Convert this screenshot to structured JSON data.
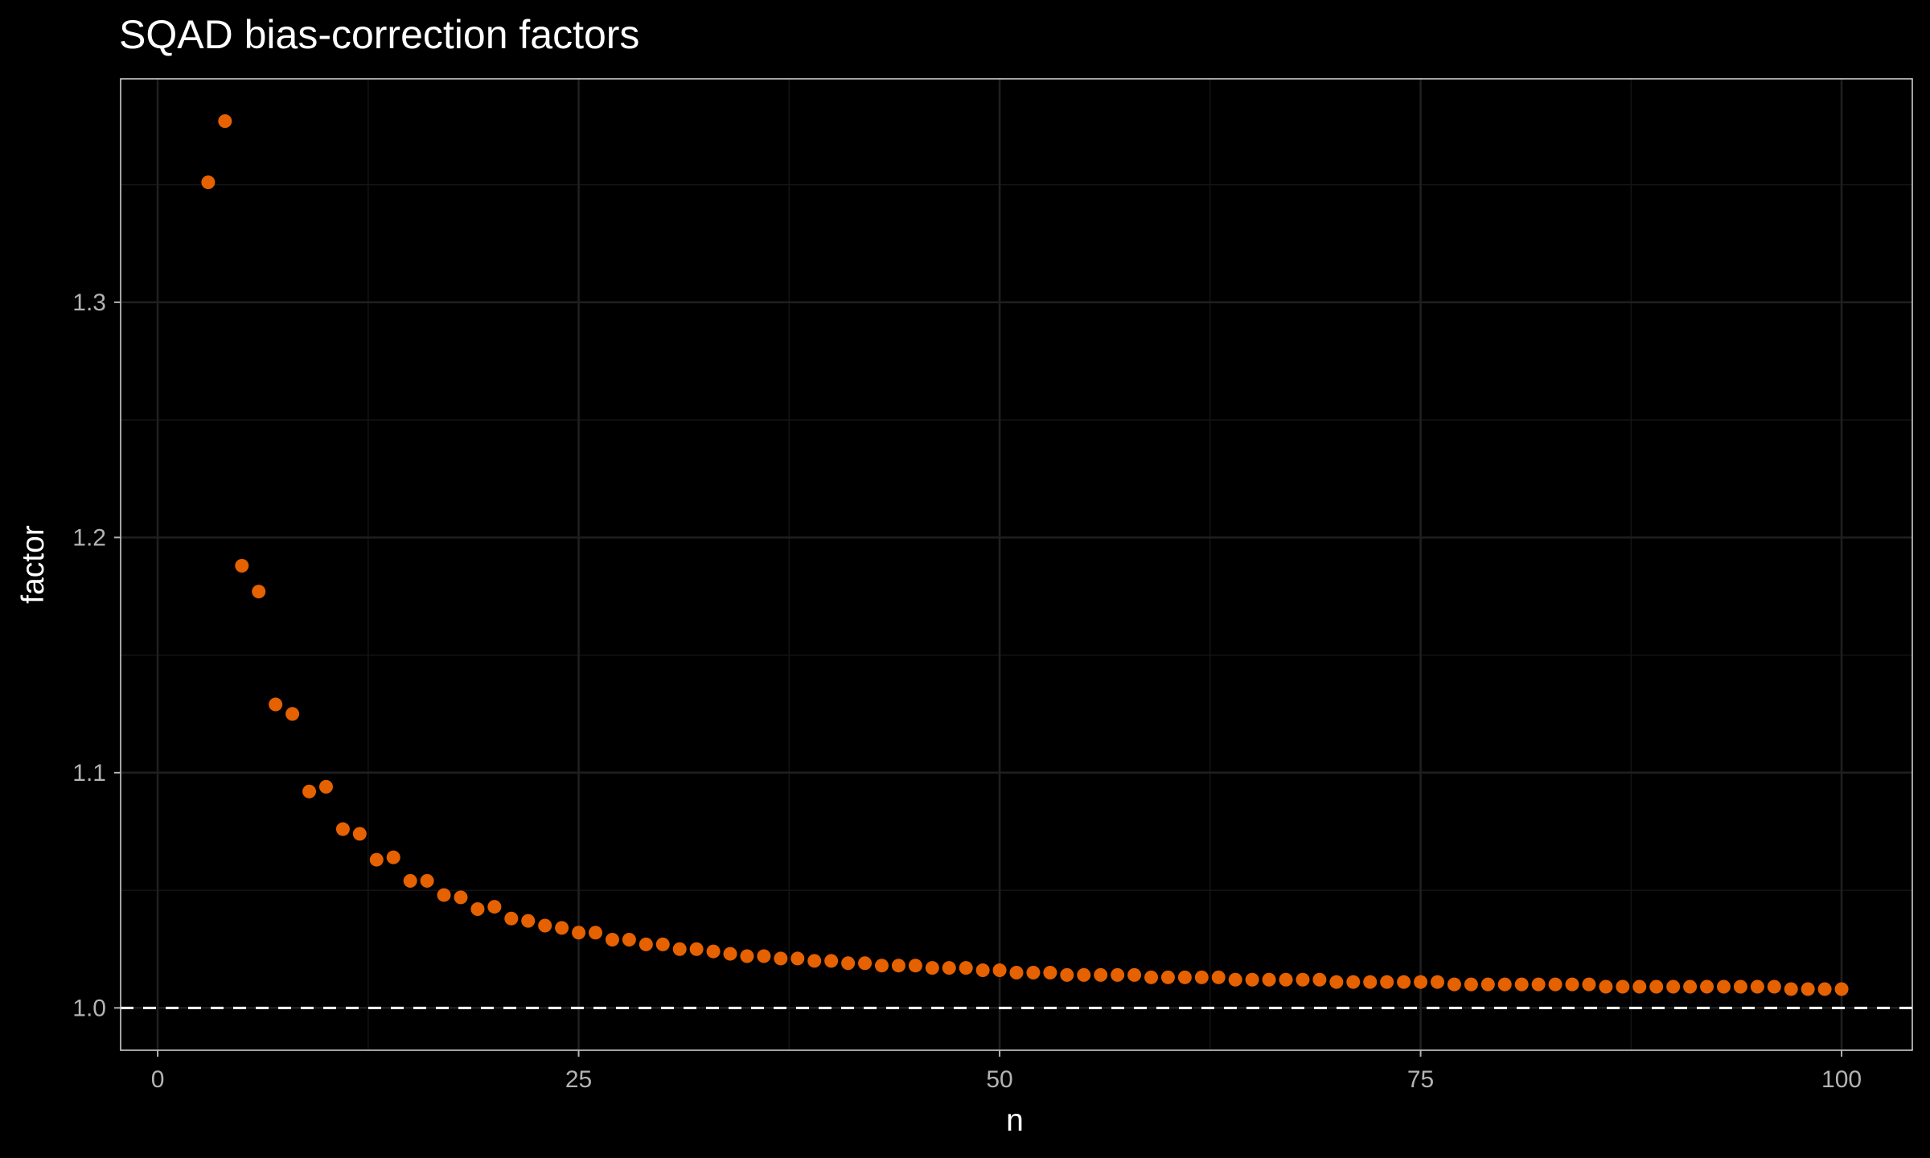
{
  "chart_data": {
    "type": "scatter",
    "title": "SQAD bias-correction factors",
    "xlabel": "n",
    "ylabel": "factor",
    "xlim": [
      -2.2,
      104.2
    ],
    "ylim": [
      0.982,
      1.395
    ],
    "xticks": [
      0,
      25,
      50,
      75,
      100
    ],
    "xtick_labels": [
      "0",
      "25",
      "50",
      "75",
      "100"
    ],
    "xminor": [
      12.5,
      37.5,
      62.5,
      87.5
    ],
    "yticks": [
      1.0,
      1.1,
      1.2,
      1.3
    ],
    "ytick_labels": [
      "1.0",
      "1.1",
      "1.2",
      "1.3"
    ],
    "yminor": [
      1.05,
      1.15,
      1.25,
      1.35
    ],
    "grid": true,
    "reference_line": {
      "y": 1.0,
      "style": "dashed",
      "color": "#ffffff"
    },
    "point_color": "#E66100",
    "x": [
      3,
      4,
      5,
      6,
      7,
      8,
      9,
      10,
      11,
      12,
      13,
      14,
      15,
      16,
      17,
      18,
      19,
      20,
      21,
      22,
      23,
      24,
      25,
      26,
      27,
      28,
      29,
      30,
      31,
      32,
      33,
      34,
      35,
      36,
      37,
      38,
      39,
      40,
      41,
      42,
      43,
      44,
      45,
      46,
      47,
      48,
      49,
      50,
      51,
      52,
      53,
      54,
      55,
      56,
      57,
      58,
      59,
      60,
      61,
      62,
      63,
      64,
      65,
      66,
      67,
      68,
      69,
      70,
      71,
      72,
      73,
      74,
      75,
      76,
      77,
      78,
      79,
      80,
      81,
      82,
      83,
      84,
      85,
      86,
      87,
      88,
      89,
      90,
      91,
      92,
      93,
      94,
      95,
      96,
      97,
      98,
      99,
      100
    ],
    "y": [
      1.351,
      1.377,
      1.188,
      1.177,
      1.129,
      1.125,
      1.092,
      1.094,
      1.076,
      1.074,
      1.063,
      1.064,
      1.054,
      1.054,
      1.048,
      1.047,
      1.042,
      1.043,
      1.038,
      1.037,
      1.035,
      1.034,
      1.032,
      1.032,
      1.029,
      1.029,
      1.027,
      1.027,
      1.025,
      1.025,
      1.024,
      1.023,
      1.022,
      1.022,
      1.021,
      1.021,
      1.02,
      1.02,
      1.019,
      1.019,
      1.018,
      1.018,
      1.018,
      1.017,
      1.017,
      1.017,
      1.016,
      1.016,
      1.015,
      1.015,
      1.015,
      1.014,
      1.014,
      1.014,
      1.014,
      1.014,
      1.013,
      1.013,
      1.013,
      1.013,
      1.013,
      1.012,
      1.012,
      1.012,
      1.012,
      1.012,
      1.012,
      1.011,
      1.011,
      1.011,
      1.011,
      1.011,
      1.011,
      1.011,
      1.01,
      1.01,
      1.01,
      1.01,
      1.01,
      1.01,
      1.01,
      1.01,
      1.01,
      1.009,
      1.009,
      1.009,
      1.009,
      1.009,
      1.009,
      1.009,
      1.009,
      1.009,
      1.009,
      1.009,
      1.008,
      1.008,
      1.008,
      1.008
    ]
  }
}
